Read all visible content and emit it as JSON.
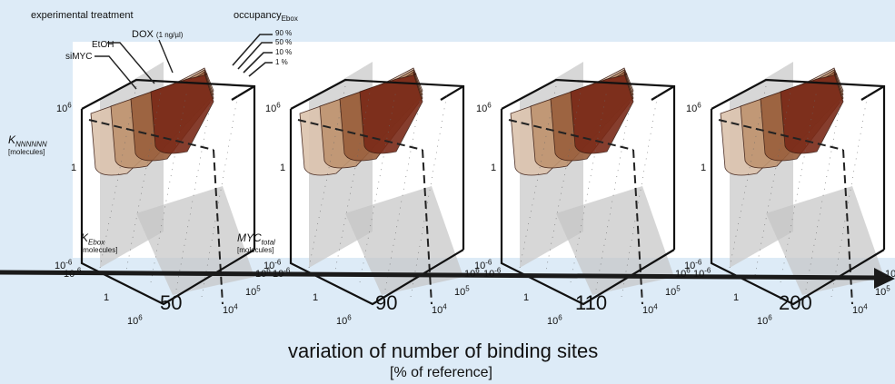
{
  "colors": {
    "background": "#ddebf7",
    "panel": "#ffffff",
    "surface_dark": "#7a1a10",
    "surface_light": "#d9bfa8",
    "plane": "#bfbfbf"
  },
  "labels": {
    "treatment": "experimental treatment",
    "occupancy": "occupancy",
    "occupancy_sub": "Ebox",
    "dox": "DOX",
    "dox_unit": "(1 ng/µl)",
    "etoh": "EtOH",
    "simyc": "siMYC",
    "occ_levels": [
      "90 %",
      "50 %",
      "10 %",
      "1 %"
    ],
    "z_axis": "K",
    "z_axis_sub": "NNNNNN",
    "z_unit": "[molecules]",
    "kebox": "K",
    "kebox_sub": "Ebox",
    "kebox_unit": "[molecules]",
    "myc": "MYC",
    "myc_sub": "total",
    "myc_unit": "[molecules]"
  },
  "ticks": {
    "z": [
      "10",
      "1",
      "10"
    ],
    "z_exp": [
      "6",
      "",
      "-6"
    ],
    "kebox": [
      "10",
      "1",
      "10"
    ],
    "kebox_exp": [
      "-6",
      "",
      "6"
    ],
    "myc": [
      "10",
      "10",
      "10"
    ],
    "myc_exp": [
      "6",
      "5",
      "4"
    ]
  },
  "panels": [
    "50",
    "90",
    "110",
    "200"
  ],
  "axis_title": "variation of number of binding sites",
  "axis_unit": "[% of reference]"
}
